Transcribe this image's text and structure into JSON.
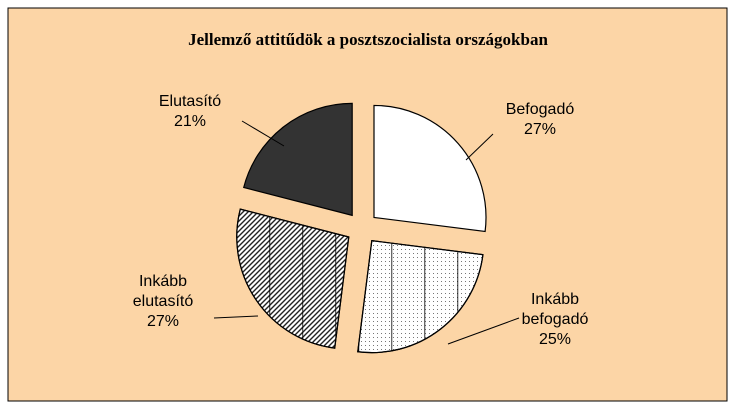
{
  "chart_data": {
    "type": "pie",
    "title": "Jellemző attitűdök a posztszocialista országokban",
    "categories": [
      "Befogadó",
      "Inkább befogadó",
      "Inkább elutasító",
      "Elutasító"
    ],
    "values": [
      27,
      25,
      27,
      21
    ],
    "value_labels": [
      "27%",
      "25%",
      "27%",
      "21%"
    ],
    "colors": [
      "#ffffff",
      "#ffffff",
      "#ffffff",
      "#333333"
    ],
    "patterns": [
      "none",
      "dots",
      "hatch",
      "none"
    ]
  }
}
